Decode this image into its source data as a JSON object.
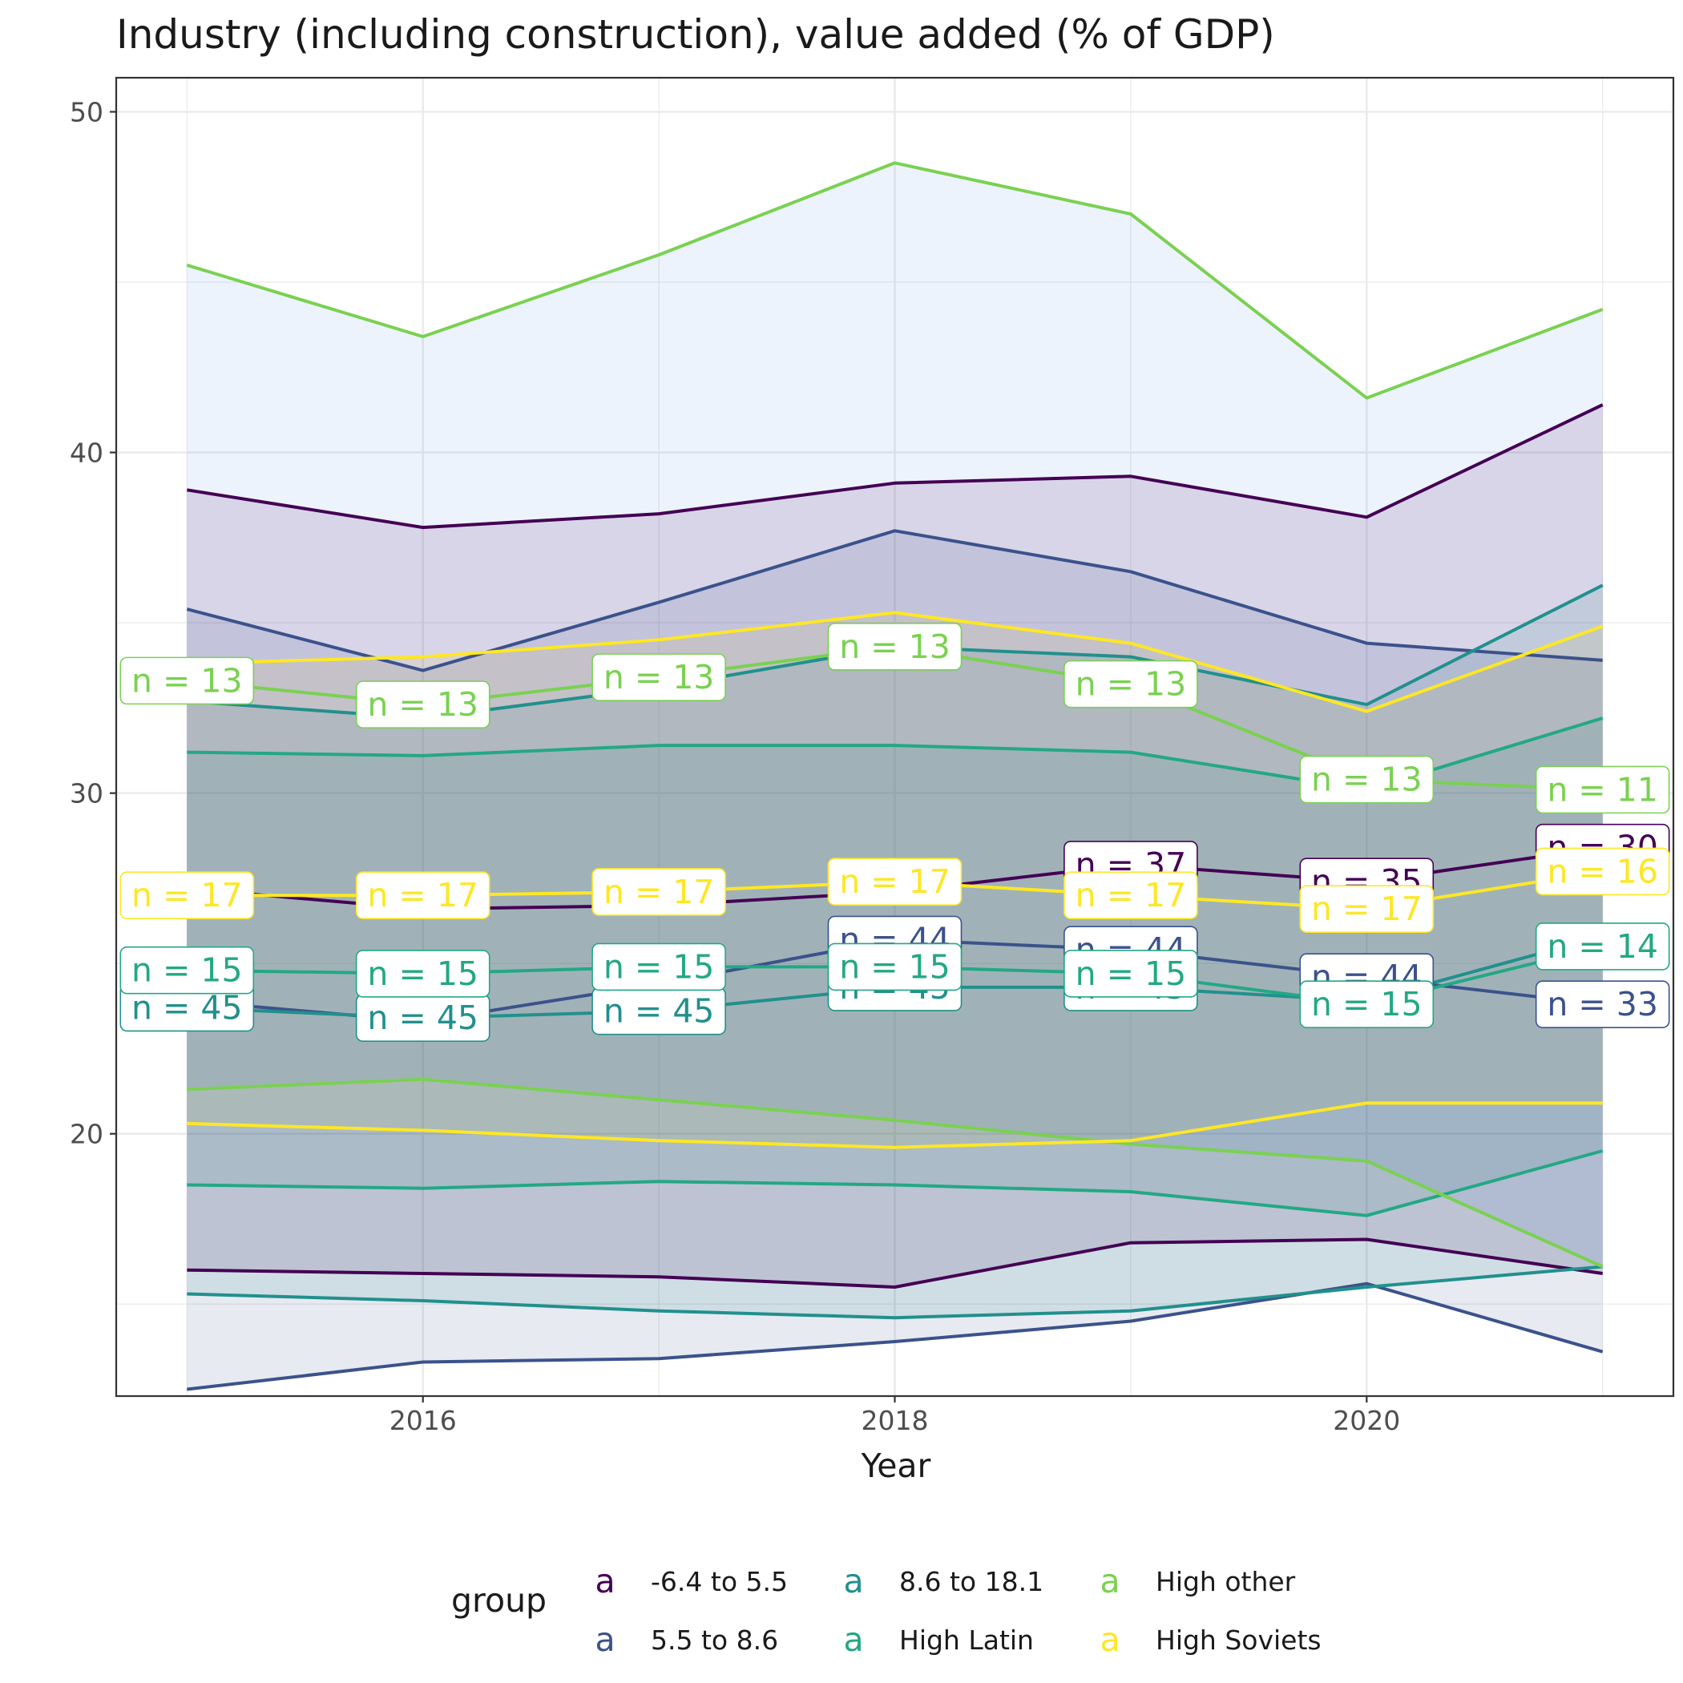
{
  "chart_data": {
    "type": "line",
    "title": "Industry (including construction), value added (% of GDP)",
    "xlabel": "Year",
    "ylabel": "",
    "x": [
      2015,
      2016,
      2017,
      2018,
      2019,
      2020,
      2021
    ],
    "xlim": [
      2014.7,
      2021.3
    ],
    "ylim": [
      12.3,
      51
    ],
    "x_ticks": [
      2016,
      2018,
      2020
    ],
    "y_ticks": [
      20,
      30,
      40,
      50
    ],
    "grid": true,
    "legend": {
      "title": "group",
      "placement": "bottom",
      "key_glyph": "a"
    },
    "series": [
      {
        "name": "-6.4 to 5.5",
        "color": "#440154",
        "upper": [
          38.9,
          37.8,
          38.2,
          39.1,
          39.3,
          38.1,
          41.4
        ],
        "mean": [
          27.2,
          26.6,
          26.7,
          27.1,
          27.9,
          27.4,
          28.4
        ],
        "lower": [
          16.0,
          15.9,
          15.8,
          15.5,
          16.8,
          16.9,
          15.9
        ],
        "n": [
          null,
          null,
          null,
          null,
          "n = 37",
          "n = 35",
          "n = 30"
        ]
      },
      {
        "name": "5.5 to 8.6",
        "color": "#3b528b",
        "upper": [
          35.4,
          33.6,
          35.6,
          37.7,
          36.5,
          34.4,
          33.9
        ],
        "mean": [
          23.9,
          23.3,
          24.4,
          25.7,
          25.4,
          24.6,
          23.8
        ],
        "lower": [
          12.5,
          13.3,
          13.4,
          13.9,
          14.5,
          15.6,
          13.6
        ],
        "n": [
          null,
          null,
          null,
          "n = 44",
          "n = 44",
          "n = 44",
          "n = 33"
        ]
      },
      {
        "name": "8.6 to 18.1",
        "color": "#21908d",
        "upper": [
          32.7,
          32.2,
          33.1,
          34.3,
          34.0,
          32.6,
          36.1
        ],
        "mean": [
          23.7,
          23.4,
          23.6,
          24.3,
          24.3,
          23.9,
          25.8
        ],
        "lower": [
          15.3,
          15.1,
          14.8,
          14.6,
          14.8,
          15.5,
          16.1
        ],
        "n": [
          "n = 45",
          "n = 45",
          "n = 45",
          "n = 45",
          "n = 45",
          null,
          null
        ]
      },
      {
        "name": "High Latin",
        "color": "#23a884",
        "upper": [
          31.2,
          31.1,
          31.4,
          31.4,
          31.2,
          30.1,
          32.2
        ],
        "mean": [
          24.8,
          24.7,
          24.9,
          24.9,
          24.7,
          23.8,
          25.5
        ],
        "lower": [
          18.5,
          18.4,
          18.6,
          18.5,
          18.3,
          17.6,
          19.5
        ],
        "n": [
          "n = 15",
          "n = 15",
          "n = 15",
          "n = 15",
          "n = 15",
          "n = 15",
          "n = 14"
        ]
      },
      {
        "name": "High other",
        "color": "#7ad151",
        "upper": [
          45.5,
          43.4,
          45.8,
          48.5,
          47.0,
          41.6,
          44.2
        ],
        "mean": [
          33.3,
          32.6,
          33.4,
          34.3,
          33.2,
          30.4,
          30.1
        ],
        "lower": [
          21.3,
          21.6,
          21.0,
          20.4,
          19.7,
          19.2,
          16.1
        ],
        "n": [
          "n = 13",
          "n = 13",
          "n = 13",
          "n = 13",
          "n = 13",
          "n = 13",
          "n = 11"
        ]
      },
      {
        "name": "High Soviets",
        "color": "#fde725",
        "upper": [
          33.8,
          34.0,
          34.5,
          35.3,
          34.4,
          32.4,
          34.9
        ],
        "mean": [
          27.0,
          27.0,
          27.1,
          27.4,
          27.0,
          26.6,
          27.7
        ],
        "lower": [
          20.3,
          20.1,
          19.8,
          19.6,
          19.8,
          20.9,
          20.9
        ],
        "n": [
          "n = 17",
          "n = 17",
          "n = 17",
          "n = 17",
          "n = 17",
          "n = 17",
          "n = 16"
        ]
      }
    ]
  }
}
